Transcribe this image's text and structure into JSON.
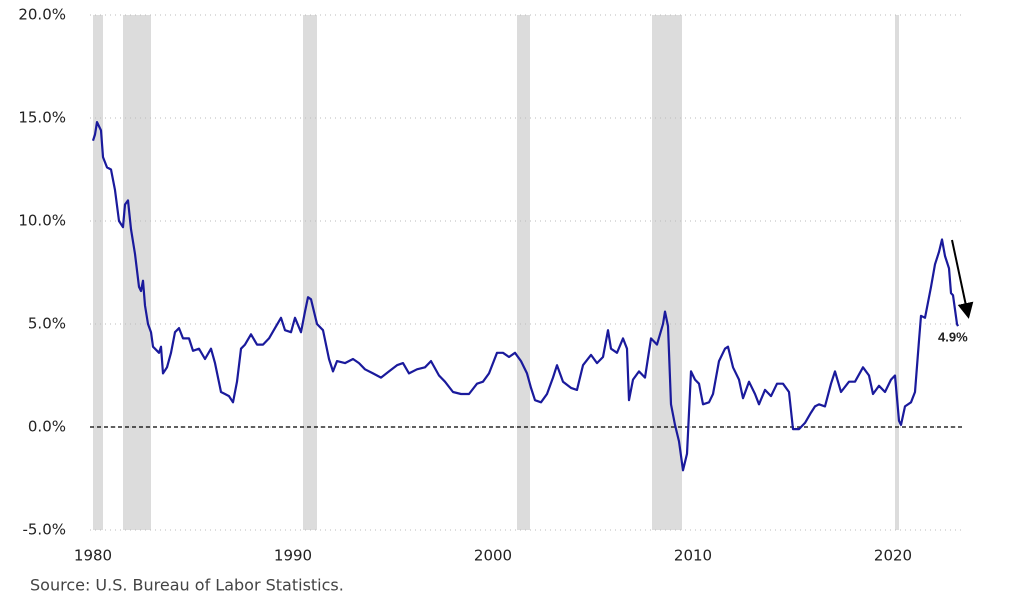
{
  "chart_data": {
    "type": "line",
    "source": "Source: U.S. Bureau of Labor Statistics.",
    "annotation": {
      "text": "4.9%"
    },
    "color": "#1a1a9c",
    "hline": 0,
    "grid": true,
    "xlim": [
      1979.85,
      2023.6
    ],
    "ylim": [
      -5,
      20
    ],
    "xticks": [
      1980,
      1990,
      2000,
      2010,
      2020
    ],
    "yticks": [
      {
        "value": -5,
        "label": "-5.0%"
      },
      {
        "value": 0,
        "label": "0.0%"
      },
      {
        "value": 5,
        "label": "5.0%"
      },
      {
        "value": 10,
        "label": "10.0%"
      },
      {
        "value": 15,
        "label": "15.0%"
      },
      {
        "value": 20,
        "label": "20.0%"
      }
    ],
    "recessions": [
      [
        1980.0,
        1980.5
      ],
      [
        1981.5,
        1982.9
      ],
      [
        1990.5,
        1991.2
      ],
      [
        2001.2,
        2001.85
      ],
      [
        2007.95,
        2009.45
      ],
      [
        2020.1,
        2020.3
      ]
    ],
    "x": [
      1980.0,
      1980.1,
      1980.2,
      1980.4,
      1980.5,
      1980.7,
      1980.9,
      1981.1,
      1981.3,
      1981.5,
      1981.6,
      1981.75,
      1981.9,
      1982.1,
      1982.3,
      1982.4,
      1982.5,
      1982.6,
      1982.75,
      1982.9,
      1983.0,
      1983.3,
      1983.4,
      1983.5,
      1983.7,
      1983.9,
      1984.1,
      1984.3,
      1984.5,
      1984.8,
      1985.0,
      1985.3,
      1985.6,
      1985.9,
      1986.1,
      1986.4,
      1986.6,
      1986.8,
      1987.0,
      1987.2,
      1987.4,
      1987.6,
      1987.9,
      1988.2,
      1988.5,
      1988.8,
      1989.1,
      1989.4,
      1989.6,
      1989.9,
      1990.1,
      1990.4,
      1990.6,
      1990.75,
      1990.9,
      1991.2,
      1991.5,
      1991.8,
      1992.0,
      1992.2,
      1992.6,
      1993.0,
      1993.3,
      1993.6,
      1994.0,
      1994.4,
      1994.8,
      1995.2,
      1995.5,
      1995.8,
      1996.2,
      1996.6,
      1996.9,
      1997.3,
      1997.6,
      1998.0,
      1998.4,
      1998.8,
      1999.2,
      1999.5,
      1999.8,
      2000.2,
      2000.5,
      2000.8,
      2001.1,
      2001.4,
      2001.7,
      2001.9,
      2002.1,
      2002.4,
      2002.7,
      2003.0,
      2003.2,
      2003.5,
      2003.9,
      2004.2,
      2004.5,
      2004.9,
      2005.2,
      2005.5,
      2005.75,
      2005.9,
      2006.2,
      2006.5,
      2006.7,
      2006.8,
      2007.0,
      2007.3,
      2007.6,
      2007.9,
      2008.2,
      2008.5,
      2008.6,
      2008.75,
      2008.9,
      2009.1,
      2009.3,
      2009.5,
      2009.7,
      2009.9,
      2010.1,
      2010.3,
      2010.5,
      2010.8,
      2011.0,
      2011.3,
      2011.6,
      2011.75,
      2012.0,
      2012.3,
      2012.5,
      2012.8,
      2013.1,
      2013.3,
      2013.6,
      2013.9,
      2014.2,
      2014.5,
      2014.8,
      2015.0,
      2015.3,
      2015.6,
      2015.9,
      2016.1,
      2016.3,
      2016.6,
      2016.9,
      2017.1,
      2017.4,
      2017.8,
      2018.1,
      2018.5,
      2018.8,
      2019.0,
      2019.3,
      2019.6,
      2019.9,
      2020.1,
      2020.3,
      2020.4,
      2020.6,
      2020.9,
      2021.1,
      2021.3,
      2021.4,
      2021.6,
      2021.9,
      2022.1,
      2022.3,
      2022.45,
      2022.6,
      2022.8,
      2022.9,
      2023.0,
      2023.2,
      2023.25
    ],
    "values": [
      13.9,
      14.2,
      14.8,
      14.4,
      13.1,
      12.6,
      12.5,
      11.5,
      10.0,
      9.7,
      10.8,
      11.0,
      9.6,
      8.4,
      6.8,
      6.6,
      7.1,
      5.9,
      5.0,
      4.6,
      3.9,
      3.6,
      3.9,
      2.6,
      2.9,
      3.6,
      4.6,
      4.8,
      4.3,
      4.3,
      3.7,
      3.8,
      3.3,
      3.8,
      3.1,
      1.7,
      1.6,
      1.5,
      1.2,
      2.2,
      3.8,
      4.0,
      4.5,
      4.0,
      4.0,
      4.3,
      4.8,
      5.3,
      4.7,
      4.6,
      5.3,
      4.6,
      5.6,
      6.3,
      6.2,
      5.0,
      4.7,
      3.3,
      2.7,
      3.2,
      3.1,
      3.3,
      3.1,
      2.8,
      2.6,
      2.4,
      2.7,
      3.0,
      3.1,
      2.6,
      2.8,
      2.9,
      3.2,
      2.5,
      2.2,
      1.7,
      1.6,
      1.6,
      2.1,
      2.2,
      2.6,
      3.6,
      3.6,
      3.4,
      3.6,
      3.2,
      2.6,
      1.9,
      1.3,
      1.2,
      1.6,
      2.4,
      3.0,
      2.2,
      1.9,
      1.8,
      3.0,
      3.5,
      3.1,
      3.4,
      4.7,
      3.8,
      3.6,
      4.3,
      3.8,
      1.3,
      2.3,
      2.7,
      2.4,
      4.3,
      4.0,
      5.0,
      5.6,
      4.9,
      1.1,
      0.1,
      -0.7,
      -2.1,
      -1.3,
      2.7,
      2.3,
      2.1,
      1.1,
      1.2,
      1.6,
      3.2,
      3.8,
      3.9,
      2.9,
      2.3,
      1.4,
      2.2,
      1.6,
      1.1,
      1.8,
      1.5,
      2.1,
      2.1,
      1.7,
      -0.1,
      -0.1,
      0.2,
      0.7,
      1.0,
      1.1,
      1.0,
      2.1,
      2.7,
      1.7,
      2.2,
      2.2,
      2.9,
      2.5,
      1.6,
      2.0,
      1.7,
      2.3,
      2.5,
      0.3,
      0.1,
      1.0,
      1.2,
      1.7,
      4.2,
      5.4,
      5.3,
      6.8,
      7.9,
      8.5,
      9.1,
      8.3,
      7.7,
      6.5,
      6.4,
      5.0,
      4.9
    ]
  }
}
